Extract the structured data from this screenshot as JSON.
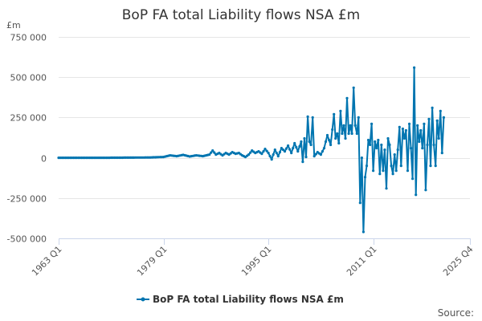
{
  "colors": {
    "series": "#0075b0",
    "grid": "#e6e6e6",
    "axis": "#ccd6eb",
    "text": "#333333"
  },
  "chart_data": {
    "type": "line",
    "title": "BoP FA total Liability flows NSA £m",
    "ylabel": "£m",
    "xlabel": "",
    "ylim": [
      -500000,
      750000
    ],
    "yticks": [
      -500000,
      -250000,
      0,
      250000,
      500000,
      750000
    ],
    "ytick_labels": [
      "-500 000",
      "-250 000",
      "0",
      "250 000",
      "500 000",
      "750 000"
    ],
    "xticks": [
      "1963 Q1",
      "1979 Q1",
      "1995 Q1",
      "2011 Q1",
      "2025 Q4"
    ],
    "xlim": [
      "1963 Q1",
      "2025 Q4"
    ],
    "grid": true,
    "legend": "bottom-center",
    "credits": "Source:",
    "series": [
      {
        "name": "BoP FA total Liability flows NSA £m",
        "frequency": "quarterly",
        "start": "1963 Q1",
        "points": [
          [
            "1963 Q1",
            0
          ],
          [
            "1966 Q1",
            0
          ],
          [
            "1970 Q1",
            0
          ],
          [
            "1974 Q1",
            1000
          ],
          [
            "1977 Q1",
            2000
          ],
          [
            "1979 Q1",
            5000
          ],
          [
            "1980 Q1",
            15000
          ],
          [
            "1981 Q1",
            10000
          ],
          [
            "1982 Q1",
            18000
          ],
          [
            "1983 Q1",
            8000
          ],
          [
            "1984 Q1",
            15000
          ],
          [
            "1985 Q1",
            10000
          ],
          [
            "1986 Q1",
            20000
          ],
          [
            "1986 Q3",
            45000
          ],
          [
            "1987 Q1",
            20000
          ],
          [
            "1987 Q3",
            30000
          ],
          [
            "1988 Q1",
            15000
          ],
          [
            "1988 Q3",
            30000
          ],
          [
            "1989 Q1",
            20000
          ],
          [
            "1989 Q3",
            35000
          ],
          [
            "1990 Q1",
            25000
          ],
          [
            "1990 Q3",
            30000
          ],
          [
            "1991 Q1",
            15000
          ],
          [
            "1991 Q3",
            5000
          ],
          [
            "1992 Q1",
            20000
          ],
          [
            "1992 Q3",
            45000
          ],
          [
            "1993 Q1",
            30000
          ],
          [
            "1993 Q3",
            40000
          ],
          [
            "1994 Q1",
            25000
          ],
          [
            "1994 Q3",
            55000
          ],
          [
            "1995 Q1",
            30000
          ],
          [
            "1995 Q3",
            -10000
          ],
          [
            "1996 Q1",
            50000
          ],
          [
            "1996 Q3",
            10000
          ],
          [
            "1997 Q1",
            60000
          ],
          [
            "1997 Q3",
            40000
          ],
          [
            "1998 Q1",
            75000
          ],
          [
            "1998 Q3",
            30000
          ],
          [
            "1999 Q1",
            90000
          ],
          [
            "1999 Q3",
            40000
          ],
          [
            "2000 Q1",
            100000
          ],
          [
            "2000 Q2",
            -25000
          ],
          [
            "2000 Q3",
            120000
          ],
          [
            "2000 Q4",
            5000
          ],
          [
            "2001 Q1",
            255000
          ],
          [
            "2001 Q2",
            100000
          ],
          [
            "2001 Q3",
            80000
          ],
          [
            "2001 Q4",
            250000
          ],
          [
            "2002 Q1",
            10000
          ],
          [
            "2002 Q3",
            35000
          ],
          [
            "2003 Q1",
            20000
          ],
          [
            "2003 Q3",
            60000
          ],
          [
            "2004 Q1",
            140000
          ],
          [
            "2004 Q3",
            80000
          ],
          [
            "2005 Q1",
            270000
          ],
          [
            "2005 Q2",
            120000
          ],
          [
            "2005 Q3",
            150000
          ],
          [
            "2005 Q4",
            90000
          ],
          [
            "2006 Q1",
            290000
          ],
          [
            "2006 Q2",
            150000
          ],
          [
            "2006 Q3",
            200000
          ],
          [
            "2006 Q4",
            120000
          ],
          [
            "2007 Q1",
            370000
          ],
          [
            "2007 Q2",
            150000
          ],
          [
            "2007 Q3",
            200000
          ],
          [
            "2007 Q4",
            150000
          ],
          [
            "2008 Q1",
            435000
          ],
          [
            "2008 Q2",
            200000
          ],
          [
            "2008 Q3",
            150000
          ],
          [
            "2008 Q4",
            250000
          ],
          [
            "2009 Q1",
            -280000
          ],
          [
            "2009 Q2",
            0
          ],
          [
            "2009 Q3",
            -460000
          ],
          [
            "2009 Q4",
            -120000
          ],
          [
            "2010 Q1",
            -50000
          ],
          [
            "2010 Q2",
            110000
          ],
          [
            "2010 Q3",
            80000
          ],
          [
            "2010 Q4",
            210000
          ],
          [
            "2011 Q1",
            -80000
          ],
          [
            "2011 Q2",
            100000
          ],
          [
            "2011 Q3",
            60000
          ],
          [
            "2011 Q4",
            110000
          ],
          [
            "2012 Q1",
            -100000
          ],
          [
            "2012 Q2",
            80000
          ],
          [
            "2012 Q3",
            -80000
          ],
          [
            "2012 Q4",
            50000
          ],
          [
            "2013 Q1",
            -190000
          ],
          [
            "2013 Q2",
            120000
          ],
          [
            "2013 Q3",
            80000
          ],
          [
            "2013 Q4",
            -50000
          ],
          [
            "2014 Q1",
            -100000
          ],
          [
            "2014 Q2",
            20000
          ],
          [
            "2014 Q3",
            -80000
          ],
          [
            "2014 Q4",
            50000
          ],
          [
            "2015 Q1",
            190000
          ],
          [
            "2015 Q2",
            -50000
          ],
          [
            "2015 Q3",
            180000
          ],
          [
            "2015 Q4",
            120000
          ],
          [
            "2016 Q1",
            170000
          ],
          [
            "2016 Q2",
            -80000
          ],
          [
            "2016 Q3",
            210000
          ],
          [
            "2016 Q4",
            60000
          ],
          [
            "2017 Q1",
            -130000
          ],
          [
            "2017 Q2",
            560000
          ],
          [
            "2017 Q3",
            -230000
          ],
          [
            "2017 Q4",
            200000
          ],
          [
            "2018 Q1",
            100000
          ],
          [
            "2018 Q2",
            170000
          ],
          [
            "2018 Q3",
            60000
          ],
          [
            "2018 Q4",
            210000
          ],
          [
            "2019 Q1",
            -200000
          ],
          [
            "2019 Q2",
            80000
          ],
          [
            "2019 Q3",
            240000
          ],
          [
            "2019 Q4",
            -50000
          ],
          [
            "2020 Q1",
            310000
          ],
          [
            "2020 Q2",
            80000
          ],
          [
            "2020 Q3",
            -50000
          ],
          [
            "2020 Q4",
            230000
          ],
          [
            "2021 Q1",
            120000
          ],
          [
            "2021 Q2",
            290000
          ],
          [
            "2021 Q3",
            30000
          ],
          [
            "2021 Q4",
            250000
          ]
        ]
      }
    ]
  }
}
